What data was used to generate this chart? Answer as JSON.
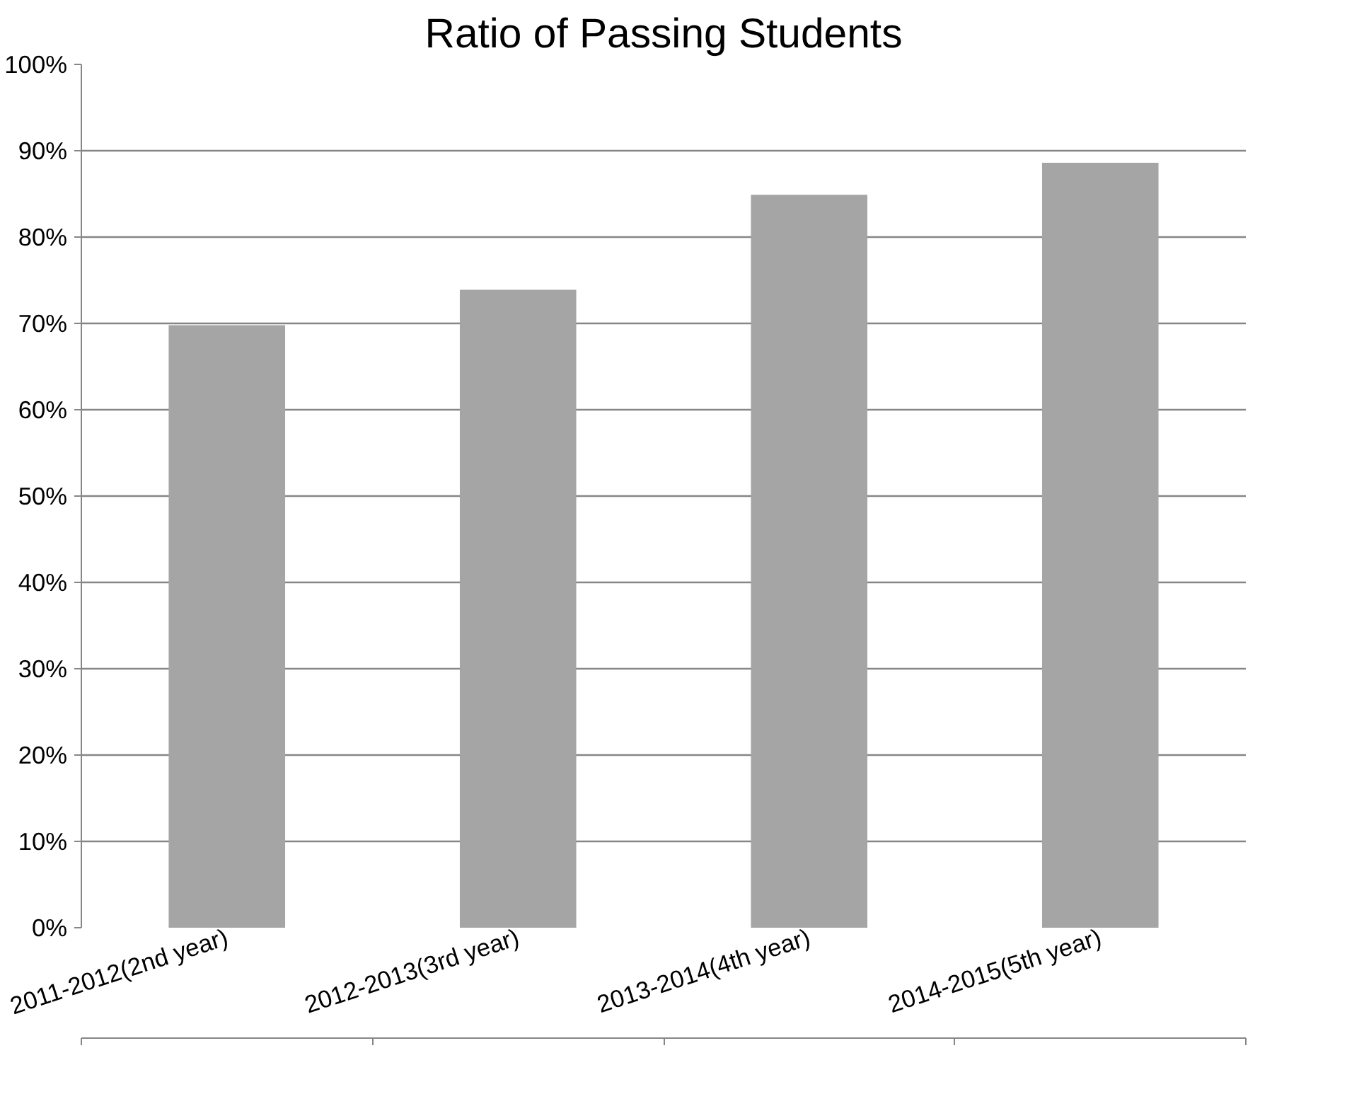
{
  "chart_data": {
    "type": "bar",
    "title": "Ratio of Passing Students",
    "categories": [
      "2011-2012(2nd year)",
      "2012-2013(3rd year)",
      "2013-2014(4th year)",
      "2014-2015(5th year)"
    ],
    "values": [
      69.8,
      73.9,
      84.9,
      88.6
    ],
    "color": "#a5a5a5",
    "ylim": [
      0,
      100
    ],
    "yticks": [
      {
        "value": 0,
        "label": "0%"
      },
      {
        "value": 10,
        "label": "10%"
      },
      {
        "value": 20,
        "label": "20%"
      },
      {
        "value": 30,
        "label": "30%"
      },
      {
        "value": 40,
        "label": "40%"
      },
      {
        "value": 50,
        "label": "50%"
      },
      {
        "value": 60,
        "label": "60%"
      },
      {
        "value": 70,
        "label": "70%"
      },
      {
        "value": 80,
        "label": "80%"
      },
      {
        "value": 90,
        "label": "90%"
      },
      {
        "value": 100,
        "label": "100%"
      }
    ],
    "grid": "y"
  }
}
